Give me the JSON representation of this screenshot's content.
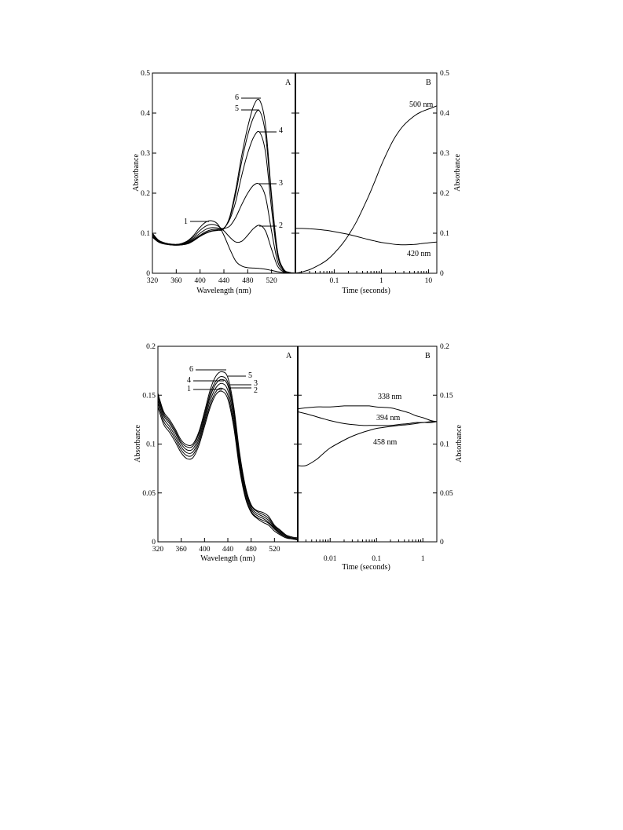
{
  "chart_data": [
    {
      "type": "line",
      "panel_label": "A",
      "xlabel": "Wavelength (nm)",
      "ylabel": "Absorbance",
      "xlim": [
        320,
        560
      ],
      "ylim": [
        0,
        0.5
      ],
      "x_ticks": [
        320,
        360,
        400,
        440,
        480,
        520
      ],
      "x_tick_labels": [
        "320",
        "360",
        "400",
        "440",
        "480",
        "520"
      ],
      "y_ticks": [
        0,
        0.1,
        0.2,
        0.3,
        0.4,
        0.5
      ],
      "y_tick_labels": [
        "0",
        "0.1",
        "0.2",
        "0.3",
        "0.4",
        "0.5"
      ],
      "x": [
        320,
        330,
        340,
        350,
        360,
        370,
        380,
        390,
        400,
        410,
        420,
        430,
        440,
        450,
        460,
        470,
        480,
        490,
        500,
        510,
        520,
        530,
        540,
        550,
        560
      ],
      "series": [
        {
          "name": "1",
          "values": [
            0.1,
            0.083,
            0.076,
            0.073,
            0.072,
            0.075,
            0.082,
            0.096,
            0.115,
            0.128,
            0.131,
            0.122,
            0.095,
            0.06,
            0.03,
            0.018,
            0.014,
            0.013,
            0.012,
            0.01,
            0.007,
            0.004,
            0.002,
            0.001,
            0.0
          ]
        },
        {
          "name": "2",
          "values": [
            0.098,
            0.082,
            0.076,
            0.073,
            0.072,
            0.074,
            0.08,
            0.092,
            0.107,
            0.118,
            0.122,
            0.118,
            0.106,
            0.09,
            0.078,
            0.08,
            0.095,
            0.112,
            0.12,
            0.105,
            0.06,
            0.018,
            0.004,
            0.001,
            0.0
          ]
        },
        {
          "name": "3",
          "values": [
            0.096,
            0.081,
            0.075,
            0.072,
            0.071,
            0.073,
            0.078,
            0.088,
            0.1,
            0.11,
            0.114,
            0.113,
            0.112,
            0.118,
            0.14,
            0.172,
            0.2,
            0.22,
            0.222,
            0.19,
            0.105,
            0.03,
            0.006,
            0.001,
            0.0
          ]
        },
        {
          "name": "4",
          "values": [
            0.093,
            0.08,
            0.074,
            0.071,
            0.071,
            0.072,
            0.076,
            0.085,
            0.095,
            0.104,
            0.109,
            0.11,
            0.113,
            0.135,
            0.18,
            0.245,
            0.3,
            0.34,
            0.352,
            0.3,
            0.16,
            0.045,
            0.008,
            0.002,
            0.0
          ]
        },
        {
          "name": "5",
          "values": [
            0.091,
            0.079,
            0.074,
            0.071,
            0.07,
            0.071,
            0.075,
            0.083,
            0.093,
            0.101,
            0.106,
            0.108,
            0.112,
            0.14,
            0.2,
            0.28,
            0.345,
            0.39,
            0.405,
            0.345,
            0.185,
            0.052,
            0.01,
            0.002,
            0.0
          ]
        },
        {
          "name": "6",
          "values": [
            0.09,
            0.078,
            0.073,
            0.071,
            0.07,
            0.071,
            0.074,
            0.082,
            0.092,
            0.1,
            0.105,
            0.107,
            0.111,
            0.142,
            0.21,
            0.295,
            0.365,
            0.418,
            0.432,
            0.368,
            0.195,
            0.055,
            0.011,
            0.002,
            0.0
          ]
        }
      ]
    },
    {
      "type": "line",
      "panel_label": "B",
      "xlabel": "Time (seconds)",
      "ylabel": "Absorbance",
      "xscale": "log",
      "xlim": [
        0.015,
        15
      ],
      "ylim": [
        0,
        0.5
      ],
      "x_ticks": [
        0.1,
        1,
        10
      ],
      "x_tick_labels": [
        "0.1",
        "1",
        "10"
      ],
      "y_ticks": [
        0,
        0.1,
        0.2,
        0.3,
        0.4,
        0.5
      ],
      "y_tick_labels": [
        "0",
        "0.1",
        "0.2",
        "0.3",
        "0.4",
        "0.5"
      ],
      "x": [
        0.015,
        0.02,
        0.03,
        0.05,
        0.07,
        0.1,
        0.15,
        0.2,
        0.3,
        0.5,
        0.7,
        1,
        1.5,
        2,
        3,
        5,
        7,
        10,
        15
      ],
      "series": [
        {
          "name": "500 nm",
          "values": [
            0.0,
            0.003,
            0.009,
            0.022,
            0.033,
            0.05,
            0.074,
            0.095,
            0.13,
            0.185,
            0.225,
            0.27,
            0.315,
            0.342,
            0.37,
            0.393,
            0.403,
            0.41,
            0.418
          ]
        },
        {
          "name": "420 nm",
          "values": [
            0.112,
            0.112,
            0.111,
            0.109,
            0.107,
            0.104,
            0.1,
            0.097,
            0.092,
            0.085,
            0.081,
            0.077,
            0.074,
            0.072,
            0.071,
            0.072,
            0.074,
            0.076,
            0.078
          ]
        }
      ]
    },
    {
      "type": "line",
      "panel_label": "A",
      "xlabel": "Wavelength (nm)",
      "ylabel": "Absorbance",
      "xlim": [
        320,
        560
      ],
      "ylim": [
        0,
        0.2
      ],
      "x_ticks": [
        320,
        360,
        400,
        440,
        480,
        520
      ],
      "x_tick_labels": [
        "320",
        "360",
        "400",
        "440",
        "480",
        "520"
      ],
      "y_ticks": [
        0,
        0.05,
        0.1,
        0.15,
        0.2
      ],
      "y_tick_labels": [
        "0",
        "0.05",
        "0.1",
        "0.15",
        "0.2"
      ],
      "x": [
        320,
        330,
        340,
        350,
        360,
        370,
        380,
        390,
        400,
        410,
        420,
        430,
        440,
        450,
        460,
        470,
        480,
        490,
        500,
        510,
        520,
        530,
        540,
        550,
        560
      ],
      "series": [
        {
          "name": "1",
          "values": [
            0.138,
            0.12,
            0.112,
            0.102,
            0.091,
            0.085,
            0.086,
            0.098,
            0.118,
            0.138,
            0.151,
            0.154,
            0.146,
            0.118,
            0.075,
            0.045,
            0.03,
            0.024,
            0.02,
            0.017,
            0.011,
            0.007,
            0.004,
            0.003,
            0.002
          ]
        },
        {
          "name": "2",
          "values": [
            0.142,
            0.123,
            0.115,
            0.105,
            0.094,
            0.088,
            0.089,
            0.101,
            0.121,
            0.141,
            0.154,
            0.157,
            0.15,
            0.122,
            0.078,
            0.047,
            0.031,
            0.025,
            0.022,
            0.019,
            0.013,
            0.008,
            0.005,
            0.003,
            0.002
          ]
        },
        {
          "name": "3",
          "values": [
            0.145,
            0.126,
            0.118,
            0.108,
            0.097,
            0.091,
            0.092,
            0.104,
            0.124,
            0.145,
            0.158,
            0.162,
            0.155,
            0.127,
            0.082,
            0.05,
            0.033,
            0.027,
            0.024,
            0.02,
            0.014,
            0.009,
            0.005,
            0.004,
            0.003
          ]
        },
        {
          "name": "4",
          "values": [
            0.148,
            0.129,
            0.121,
            0.111,
            0.1,
            0.094,
            0.095,
            0.107,
            0.127,
            0.149,
            0.162,
            0.166,
            0.16,
            0.132,
            0.086,
            0.053,
            0.035,
            0.029,
            0.026,
            0.022,
            0.015,
            0.01,
            0.006,
            0.004,
            0.003
          ]
        },
        {
          "name": "5",
          "values": [
            0.15,
            0.131,
            0.123,
            0.113,
            0.102,
            0.097,
            0.098,
            0.11,
            0.13,
            0.152,
            0.165,
            0.169,
            0.163,
            0.135,
            0.089,
            0.055,
            0.037,
            0.031,
            0.028,
            0.024,
            0.016,
            0.011,
            0.006,
            0.004,
            0.003
          ]
        },
        {
          "name": "6",
          "values": [
            0.152,
            0.133,
            0.125,
            0.115,
            0.104,
            0.099,
            0.1,
            0.112,
            0.133,
            0.156,
            0.17,
            0.174,
            0.168,
            0.139,
            0.092,
            0.057,
            0.038,
            0.032,
            0.03,
            0.026,
            0.017,
            0.012,
            0.007,
            0.005,
            0.004
          ]
        }
      ]
    },
    {
      "type": "line",
      "panel_label": "B",
      "xlabel": "Time (seconds)",
      "ylabel": "Absorbance",
      "xscale": "log",
      "xlim": [
        0.002,
        2
      ],
      "ylim": [
        0,
        0.2
      ],
      "x_ticks": [
        0.01,
        0.1,
        1
      ],
      "x_tick_labels": [
        "0.01",
        "0.1",
        "1"
      ],
      "y_ticks": [
        0,
        0.05,
        0.1,
        0.15,
        0.2
      ],
      "y_tick_labels": [
        "0",
        "0.05",
        "0.1",
        "0.15",
        "0.2"
      ],
      "x": [
        0.002,
        0.003,
        0.005,
        0.007,
        0.01,
        0.02,
        0.03,
        0.05,
        0.07,
        0.1,
        0.2,
        0.3,
        0.5,
        0.7,
        1,
        1.5,
        2
      ],
      "series": [
        {
          "name": "338 nm",
          "values": [
            0.136,
            0.137,
            0.138,
            0.138,
            0.138,
            0.139,
            0.139,
            0.139,
            0.139,
            0.138,
            0.137,
            0.135,
            0.132,
            0.129,
            0.127,
            0.124,
            0.123
          ]
        },
        {
          "name": "394 nm",
          "values": [
            0.133,
            0.131,
            0.128,
            0.126,
            0.124,
            0.121,
            0.12,
            0.119,
            0.119,
            0.119,
            0.119,
            0.12,
            0.121,
            0.122,
            0.122,
            0.123,
            0.123
          ]
        },
        {
          "name": "458 nm",
          "values": [
            0.078,
            0.078,
            0.084,
            0.09,
            0.096,
            0.104,
            0.108,
            0.112,
            0.114,
            0.116,
            0.118,
            0.119,
            0.12,
            0.121,
            0.122,
            0.122,
            0.123
          ]
        }
      ]
    }
  ],
  "labels": {
    "fig1": {
      "panel_a": "A",
      "panel_b": "B",
      "xlabel_a": "Wavelength (nm)",
      "xlabel_b": "Time (seconds)",
      "ylabel_left": "Absorbance",
      "ylabel_right": "Absorbance",
      "curve_labels": [
        "1",
        "2",
        "3",
        "4",
        "5",
        "6"
      ],
      "trace_500": "500 nm",
      "trace_420": "420 nm"
    },
    "fig2": {
      "panel_a": "A",
      "panel_b": "B",
      "xlabel_a": "Wavelength (nm)",
      "xlabel_b": "Time (seconds)",
      "ylabel_left": "Absorbance",
      "ylabel_right": "Absorbance",
      "curve_labels": [
        "1",
        "2",
        "3",
        "4",
        "5",
        "6"
      ],
      "trace_338": "338 nm",
      "trace_394": "394 nm",
      "trace_458": "458 nm"
    }
  }
}
